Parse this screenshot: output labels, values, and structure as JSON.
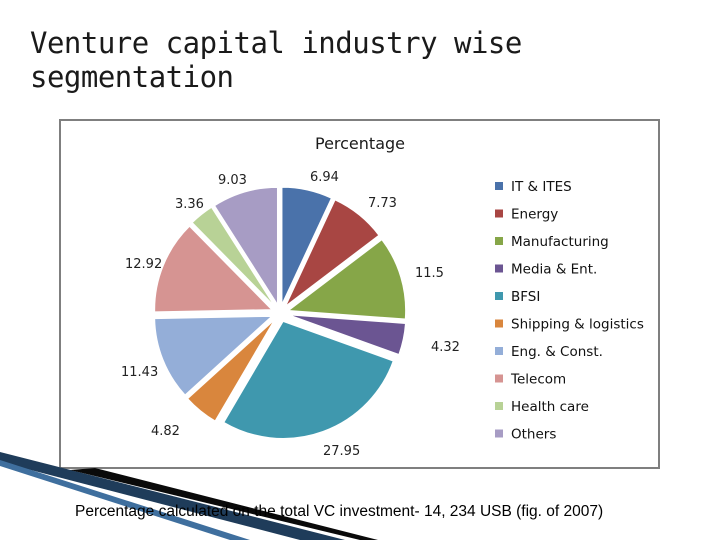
{
  "slide": {
    "title": "Venture capital industry wise segmentation",
    "footnote": "Percentage calculated on the total VC investment- 14, 234 USB (fig. of 2007)"
  },
  "chart_data": {
    "type": "pie",
    "title": "Percentage",
    "legend_position": "right",
    "slices": [
      {
        "name": "IT & ITES",
        "value": 6.94,
        "label": "6.94",
        "color": "#4a72aa"
      },
      {
        "name": "Energy",
        "value": 7.73,
        "label": "7.73",
        "color": "#a84643"
      },
      {
        "name": "Manufacturing",
        "value": 11.5,
        "label": "11.5",
        "color": "#86a648"
      },
      {
        "name": "Media & Ent.",
        "value": 4.32,
        "label": "4.32",
        "color": "#6b5592"
      },
      {
        "name": "BFSI",
        "value": 27.95,
        "label": "27.95",
        "color": "#3f98ae"
      },
      {
        "name": "Shipping & logistics",
        "value": 4.82,
        "label": "4.82",
        "color": "#d9863d"
      },
      {
        "name": "Eng. & Const.",
        "value": 11.43,
        "label": "11.43",
        "color": "#94aed8"
      },
      {
        "name": "Telecom",
        "value": 12.92,
        "label": "12.92",
        "color": "#d69492"
      },
      {
        "name": "Health care",
        "value": 3.36,
        "label": "3.36",
        "color": "#b8d296"
      },
      {
        "name": "Others",
        "value": 9.03,
        "label": "9.03",
        "color": "#a79cc4"
      }
    ]
  }
}
